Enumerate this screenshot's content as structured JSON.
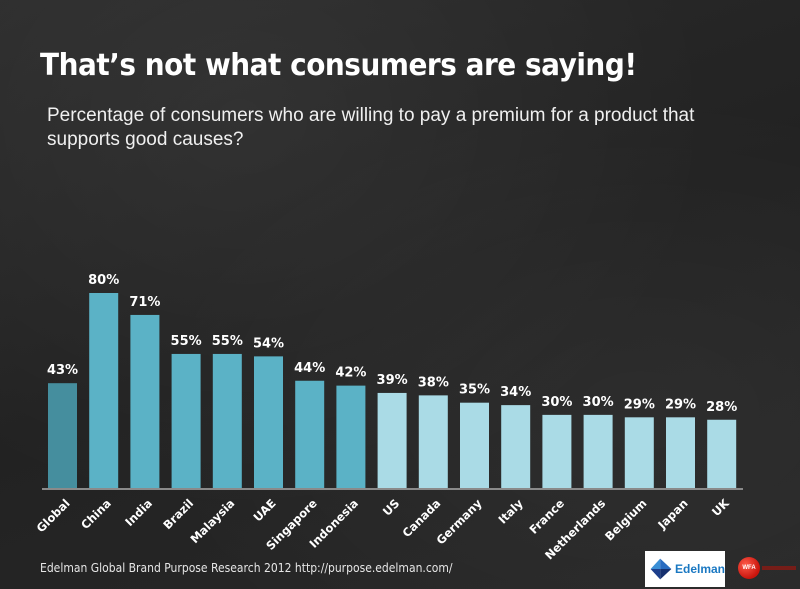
{
  "header": {
    "title": "That’s not what consumers are saying!",
    "subtitle": "Percentage of consumers who are willing to pay a premium for a product that supports good causes?"
  },
  "chart_data": {
    "type": "bar",
    "title": "That’s not what consumers are saying!",
    "subtitle": "Percentage of consumers who are willing to pay a premium for a product that supports good causes?",
    "xlabel": "",
    "ylabel": "",
    "ylim": [
      0,
      80
    ],
    "grid": false,
    "legend": "none",
    "categories": [
      "Global",
      "China",
      "India",
      "Brazil",
      "Malaysia",
      "UAE",
      "Singapore",
      "Indonesia",
      "US",
      "Canada",
      "Germany",
      "Italy",
      "France",
      "Netherlands",
      "Belgium",
      "Japan",
      "UK"
    ],
    "values": [
      43,
      80,
      71,
      55,
      55,
      54,
      44,
      42,
      39,
      38,
      35,
      34,
      30,
      30,
      29,
      29,
      28
    ],
    "labels": [
      "43%",
      "80%",
      "71%",
      "55%",
      "55%",
      "54%",
      "44%",
      "42%",
      "39%",
      "38%",
      "35%",
      "34%",
      "30%",
      "30%",
      "29%",
      "29%",
      "28%"
    ],
    "groups": [
      "global",
      "developing",
      "developing",
      "developing",
      "developing",
      "developing",
      "developing",
      "developing",
      "developed",
      "developed",
      "developed",
      "developed",
      "developed",
      "developed",
      "developed",
      "developed",
      "developed"
    ],
    "colors": {
      "global": "#458e9e",
      "developing": "#5bb2c6",
      "developed": "#aadbe6",
      "axis": "#8a8a8a",
      "label": "#ffffff"
    }
  },
  "footer": {
    "source": "Edelman Global Brand Purpose Research 2012 http://purpose.edelman.com/",
    "edelman_logo_text": "Edelman",
    "wfa_logo_text": "WFA"
  }
}
